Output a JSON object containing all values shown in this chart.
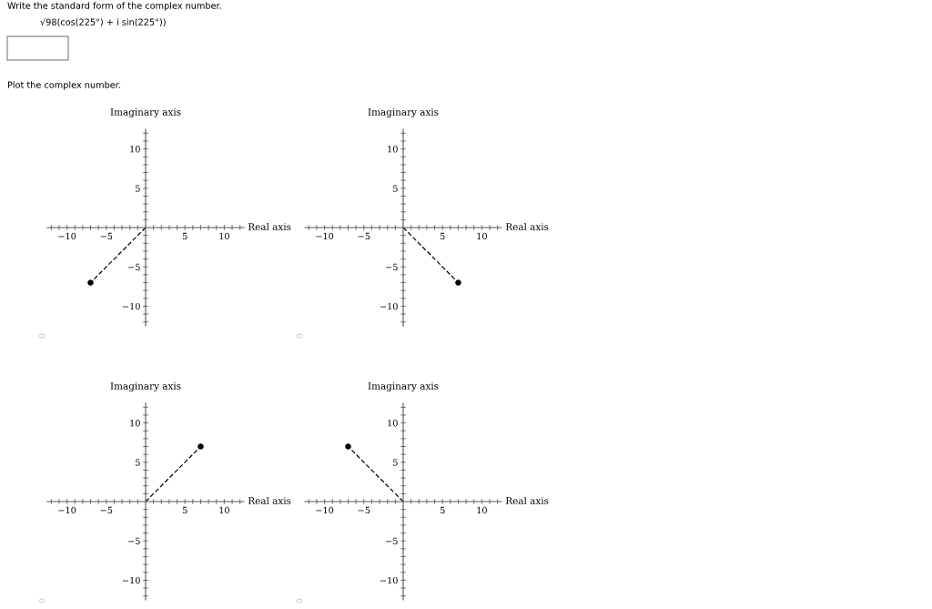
{
  "chart_data": [
    {
      "type": "line",
      "title": "Write the standard form of the complex number.",
      "subtitle": "√98(cos(225°) + i sin(225°))",
      "annotations": [
        "Plot the complex number."
      ],
      "xlabel": "Real axis",
      "ylabel": "Imaginary axis",
      "xlim": [
        -12.5,
        12.5
      ],
      "ylim": [
        -12.5,
        12.5
      ],
      "xticks": [
        {
          "value": -12,
          "label": null
        },
        {
          "value": -11,
          "label": null
        },
        {
          "value": -10,
          "label": "−10"
        },
        {
          "value": -9,
          "label": null
        },
        {
          "value": -8,
          "label": null
        },
        {
          "value": -7,
          "label": null
        },
        {
          "value": -6,
          "label": null
        },
        {
          "value": -5,
          "label": "−5"
        },
        {
          "value": -4,
          "label": null
        },
        {
          "value": -3,
          "label": null
        },
        {
          "value": -2,
          "label": null
        },
        {
          "value": -1,
          "label": null
        },
        {
          "value": 1,
          "label": null
        },
        {
          "value": 2,
          "label": null
        },
        {
          "value": 3,
          "label": null
        },
        {
          "value": 4,
          "label": null
        },
        5,
        {
          "value": 6,
          "label": null
        },
        {
          "value": 7,
          "label": null
        },
        {
          "value": 8,
          "label": null
        },
        {
          "value": 9,
          "label": null
        },
        10,
        {
          "value": 11,
          "label": null
        },
        {
          "value": 12,
          "label": null
        }
      ],
      "yticks": [
        {
          "value": -12,
          "label": null
        },
        {
          "value": -11,
          "label": null
        },
        {
          "value": -10,
          "label": "−10"
        },
        {
          "value": -9,
          "label": null
        },
        {
          "value": -8,
          "label": null
        },
        {
          "value": -7,
          "label": null
        },
        {
          "value": -6,
          "label": null
        },
        {
          "value": -5,
          "label": "−5"
        },
        {
          "value": -4,
          "label": null
        },
        {
          "value": -3,
          "label": null
        },
        {
          "value": -2,
          "label": null
        },
        {
          "value": -1,
          "label": null
        },
        {
          "value": 1,
          "label": null
        },
        {
          "value": 2,
          "label": null
        },
        {
          "value": 3,
          "label": null
        },
        {
          "value": 4,
          "label": null
        },
        5,
        {
          "value": 6,
          "label": null
        },
        {
          "value": 7,
          "label": null
        },
        {
          "value": 8,
          "label": null
        },
        {
          "value": 9,
          "label": null
        },
        10,
        {
          "value": 11,
          "label": null
        },
        {
          "value": 12,
          "label": null
        }
      ],
      "series": [
        {
          "type": "line",
          "x": [
            0,
            -7
          ],
          "values": [
            0,
            -7
          ],
          "color": "#000000",
          "line_style": "dashed",
          "marker": "none"
        },
        {
          "type": "scatter",
          "x": [
            -7
          ],
          "values": [
            -7
          ],
          "color": "#000000",
          "marker": "circle"
        }
      ]
    },
    {
      "type": "line",
      "xlabel": "Real axis",
      "ylabel": "Imaginary axis",
      "xlim": [
        -12.5,
        12.5
      ],
      "ylim": [
        -12.5,
        12.5
      ],
      "xticks": [
        {
          "value": -12,
          "label": null
        },
        {
          "value": -11,
          "label": null
        },
        {
          "value": -10,
          "label": "−10"
        },
        {
          "value": -9,
          "label": null
        },
        {
          "value": -8,
          "label": null
        },
        {
          "value": -7,
          "label": null
        },
        {
          "value": -6,
          "label": null
        },
        {
          "value": -5,
          "label": "−5"
        },
        {
          "value": -4,
          "label": null
        },
        {
          "value": -3,
          "label": null
        },
        {
          "value": -2,
          "label": null
        },
        {
          "value": -1,
          "label": null
        },
        {
          "value": 1,
          "label": null
        },
        {
          "value": 2,
          "label": null
        },
        {
          "value": 3,
          "label": null
        },
        {
          "value": 4,
          "label": null
        },
        5,
        {
          "value": 6,
          "label": null
        },
        {
          "value": 7,
          "label": null
        },
        {
          "value": 8,
          "label": null
        },
        {
          "value": 9,
          "label": null
        },
        10,
        {
          "value": 11,
          "label": null
        },
        {
          "value": 12,
          "label": null
        }
      ],
      "yticks": [
        {
          "value": -12,
          "label": null
        },
        {
          "value": -11,
          "label": null
        },
        {
          "value": -10,
          "label": "−10"
        },
        {
          "value": -9,
          "label": null
        },
        {
          "value": -8,
          "label": null
        },
        {
          "value": -7,
          "label": null
        },
        {
          "value": -6,
          "label": null
        },
        {
          "value": -5,
          "label": "−5"
        },
        {
          "value": -4,
          "label": null
        },
        {
          "value": -3,
          "label": null
        },
        {
          "value": -2,
          "label": null
        },
        {
          "value": -1,
          "label": null
        },
        {
          "value": 1,
          "label": null
        },
        {
          "value": 2,
          "label": null
        },
        {
          "value": 3,
          "label": null
        },
        {
          "value": 4,
          "label": null
        },
        5,
        {
          "value": 6,
          "label": null
        },
        {
          "value": 7,
          "label": null
        },
        {
          "value": 8,
          "label": null
        },
        {
          "value": 9,
          "label": null
        },
        10,
        {
          "value": 11,
          "label": null
        },
        {
          "value": 12,
          "label": null
        }
      ],
      "series": [
        {
          "type": "line",
          "x": [
            0,
            7
          ],
          "values": [
            0,
            -7
          ],
          "color": "#000000",
          "line_style": "dashed",
          "marker": "none"
        },
        {
          "type": "scatter",
          "x": [
            7
          ],
          "values": [
            -7
          ],
          "color": "#000000",
          "marker": "circle"
        }
      ]
    },
    {
      "type": "line",
      "xlabel": "Real axis",
      "ylabel": "Imaginary axis",
      "xlim": [
        -12.5,
        12.5
      ],
      "ylim": [
        -12.5,
        12.5
      ],
      "xticks": [
        {
          "value": -12,
          "label": null
        },
        {
          "value": -11,
          "label": null
        },
        {
          "value": -10,
          "label": "−10"
        },
        {
          "value": -9,
          "label": null
        },
        {
          "value": -8,
          "label": null
        },
        {
          "value": -7,
          "label": null
        },
        {
          "value": -6,
          "label": null
        },
        {
          "value": -5,
          "label": "−5"
        },
        {
          "value": -4,
          "label": null
        },
        {
          "value": -3,
          "label": null
        },
        {
          "value": -2,
          "label": null
        },
        {
          "value": -1,
          "label": null
        },
        {
          "value": 1,
          "label": null
        },
        {
          "value": 2,
          "label": null
        },
        {
          "value": 3,
          "label": null
        },
        {
          "value": 4,
          "label": null
        },
        5,
        {
          "value": 6,
          "label": null
        },
        {
          "value": 7,
          "label": null
        },
        {
          "value": 8,
          "label": null
        },
        {
          "value": 9,
          "label": null
        },
        10,
        {
          "value": 11,
          "label": null
        },
        {
          "value": 12,
          "label": null
        }
      ],
      "yticks": [
        {
          "value": -12,
          "label": null
        },
        {
          "value": -11,
          "label": null
        },
        {
          "value": -10,
          "label": "−10"
        },
        {
          "value": -9,
          "label": null
        },
        {
          "value": -8,
          "label": null
        },
        {
          "value": -7,
          "label": null
        },
        {
          "value": -6,
          "label": null
        },
        {
          "value": -5,
          "label": "−5"
        },
        {
          "value": -4,
          "label": null
        },
        {
          "value": -3,
          "label": null
        },
        {
          "value": -2,
          "label": null
        },
        {
          "value": -1,
          "label": null
        },
        {
          "value": 1,
          "label": null
        },
        {
          "value": 2,
          "label": null
        },
        {
          "value": 3,
          "label": null
        },
        {
          "value": 4,
          "label": null
        },
        5,
        {
          "value": 6,
          "label": null
        },
        {
          "value": 7,
          "label": null
        },
        {
          "value": 8,
          "label": null
        },
        {
          "value": 9,
          "label": null
        },
        10,
        {
          "value": 11,
          "label": null
        },
        {
          "value": 12,
          "label": null
        }
      ],
      "series": [
        {
          "type": "line",
          "x": [
            0,
            7
          ],
          "values": [
            0,
            7
          ],
          "color": "#000000",
          "line_style": "dashed",
          "marker": "none"
        },
        {
          "type": "scatter",
          "x": [
            7
          ],
          "values": [
            7
          ],
          "color": "#000000",
          "marker": "circle"
        }
      ]
    },
    {
      "type": "line",
      "xlabel": "Real axis",
      "ylabel": "Imaginary axis",
      "xlim": [
        -12.5,
        12.5
      ],
      "ylim": [
        -12.5,
        12.5
      ],
      "xticks": [
        {
          "value": -12,
          "label": null
        },
        {
          "value": -11,
          "label": null
        },
        {
          "value": -10,
          "label": "−10"
        },
        {
          "value": -9,
          "label": null
        },
        {
          "value": -8,
          "label": null
        },
        {
          "value": -7,
          "label": null
        },
        {
          "value": -6,
          "label": null
        },
        {
          "value": -5,
          "label": "−5"
        },
        {
          "value": -4,
          "label": null
        },
        {
          "value": -3,
          "label": null
        },
        {
          "value": -2,
          "label": null
        },
        {
          "value": -1,
          "label": null
        },
        {
          "value": 1,
          "label": null
        },
        {
          "value": 2,
          "label": null
        },
        {
          "value": 3,
          "label": null
        },
        {
          "value": 4,
          "label": null
        },
        5,
        {
          "value": 6,
          "label": null
        },
        {
          "value": 7,
          "label": null
        },
        {
          "value": 8,
          "label": null
        },
        {
          "value": 9,
          "label": null
        },
        10,
        {
          "value": 11,
          "label": null
        },
        {
          "value": 12,
          "label": null
        }
      ],
      "yticks": [
        {
          "value": -12,
          "label": null
        },
        {
          "value": -11,
          "label": null
        },
        {
          "value": -10,
          "label": "−10"
        },
        {
          "value": -9,
          "label": null
        },
        {
          "value": -8,
          "label": null
        },
        {
          "value": -7,
          "label": null
        },
        {
          "value": -6,
          "label": null
        },
        {
          "value": -5,
          "label": "−5"
        },
        {
          "value": -4,
          "label": null
        },
        {
          "value": -3,
          "label": null
        },
        {
          "value": -2,
          "label": null
        },
        {
          "value": -1,
          "label": null
        },
        {
          "value": 1,
          "label": null
        },
        {
          "value": 2,
          "label": null
        },
        {
          "value": 3,
          "label": null
        },
        {
          "value": 4,
          "label": null
        },
        5,
        {
          "value": 6,
          "label": null
        },
        {
          "value": 7,
          "label": null
        },
        {
          "value": 8,
          "label": null
        },
        {
          "value": 9,
          "label": null
        },
        10,
        {
          "value": 11,
          "label": null
        },
        {
          "value": 12,
          "label": null
        }
      ],
      "series": [
        {
          "type": "line",
          "x": [
            0,
            -7
          ],
          "values": [
            0,
            7
          ],
          "color": "#000000",
          "line_style": "dashed",
          "marker": "none"
        },
        {
          "type": "scatter",
          "x": [
            -7
          ],
          "values": [
            7
          ],
          "color": "#000000",
          "marker": "circle"
        }
      ]
    }
  ]
}
